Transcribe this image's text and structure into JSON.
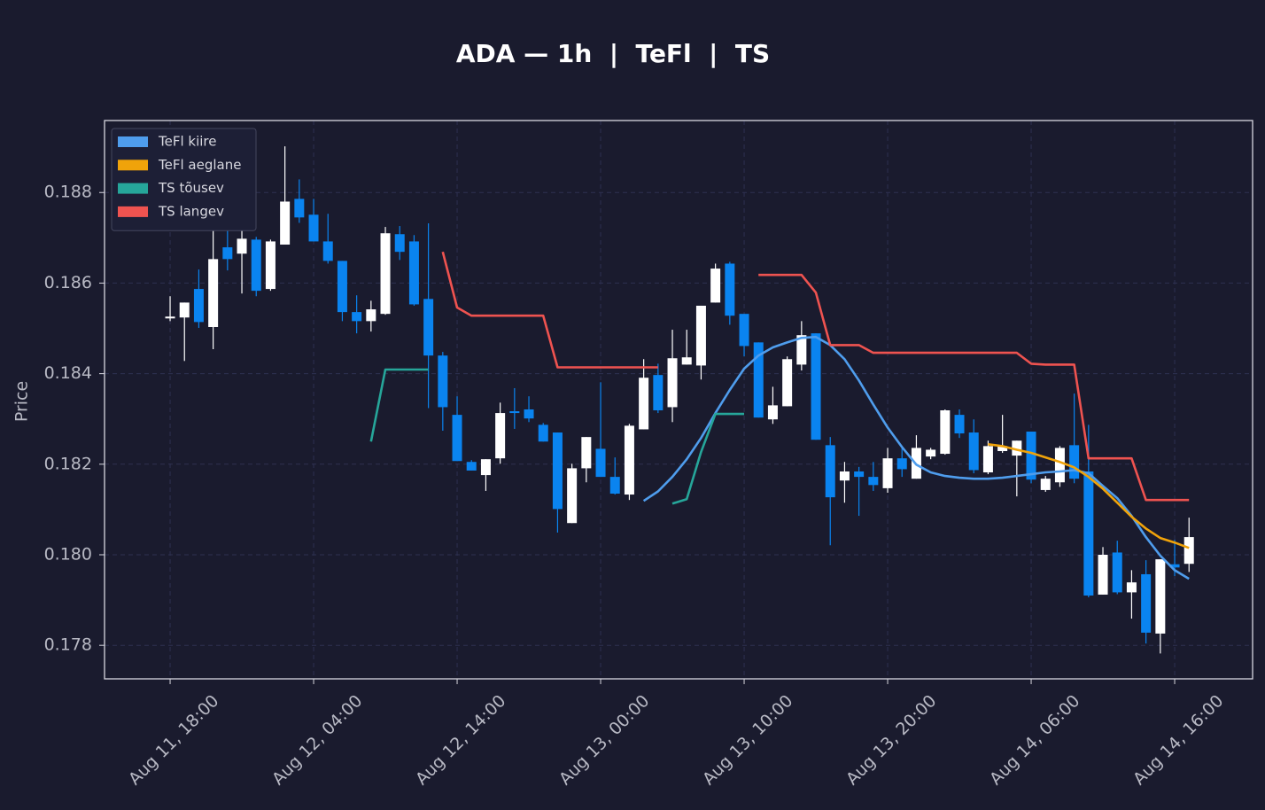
{
  "chart_data": {
    "type": "candlestick",
    "title": "ADA — 1h  |  TeFl  |  TS",
    "ylabel": "Price",
    "categories": [
      "Aug 11, 18:00",
      null,
      null,
      null,
      null,
      null,
      null,
      null,
      null,
      null,
      "Aug 12, 04:00",
      null,
      null,
      null,
      null,
      null,
      null,
      null,
      null,
      null,
      "Aug 12, 14:00",
      null,
      null,
      null,
      null,
      null,
      null,
      null,
      null,
      null,
      "Aug 13, 00:00",
      null,
      null,
      null,
      null,
      null,
      null,
      null,
      null,
      null,
      "Aug 13, 10:00",
      null,
      null,
      null,
      null,
      null,
      null,
      null,
      null,
      null,
      "Aug 13, 20:00",
      null,
      null,
      null,
      null,
      null,
      null,
      null,
      null,
      null,
      "Aug 14, 06:00",
      null,
      null,
      null,
      null,
      null,
      null,
      null,
      null,
      null,
      "Aug 14, 16:00",
      null
    ],
    "open": [
      0.18522,
      0.18524,
      0.18587,
      0.18503,
      0.18679,
      0.18665,
      0.18696,
      0.18587,
      0.18685,
      0.18786,
      0.18751,
      0.18692,
      0.18649,
      0.18536,
      0.18516,
      0.18532,
      0.18708,
      0.18692,
      0.18565,
      0.1844,
      0.18309,
      0.18205,
      0.18176,
      0.18213,
      0.18317,
      0.18321,
      0.18287,
      0.1827,
      0.1807,
      0.18191,
      0.18234,
      0.18172,
      0.18133,
      0.18277,
      0.18397,
      0.18326,
      0.1842,
      0.18418,
      0.18557,
      0.18643,
      0.18532,
      0.18469,
      0.18299,
      0.18328,
      0.1842,
      0.18489,
      0.18242,
      0.18164,
      0.18184,
      0.18172,
      0.18147,
      0.18213,
      0.18168,
      0.18217,
      0.18223,
      0.18309,
      0.1827,
      0.18182,
      0.18229,
      0.18219,
      0.18272,
      0.18143,
      0.1816,
      0.18242,
      0.18184,
      0.17912,
      0.18005,
      0.17917,
      0.17957,
      0.17826,
      0.17979,
      0.1798
    ],
    "high": [
      0.18571,
      0.18557,
      0.1863,
      0.18745,
      0.1872,
      0.18724,
      0.18702,
      0.18696,
      0.18902,
      0.18829,
      0.18786,
      0.18753,
      0.18649,
      0.18573,
      0.18561,
      0.18724,
      0.18726,
      0.18706,
      0.18732,
      0.18448,
      0.1835,
      0.18209,
      0.18211,
      0.18336,
      0.18368,
      0.1835,
      0.18291,
      0.1827,
      0.18201,
      0.1826,
      0.18381,
      0.18215,
      0.18289,
      0.18432,
      0.18422,
      0.18497,
      0.18497,
      0.1855,
      0.18643,
      0.18647,
      0.18532,
      0.18469,
      0.18371,
      0.18438,
      0.18516,
      0.18489,
      0.1826,
      0.18205,
      0.18194,
      0.18205,
      0.18236,
      0.18236,
      0.18264,
      0.18236,
      0.18321,
      0.18321,
      0.18299,
      0.18252,
      0.18309,
      0.18252,
      0.18272,
      0.18174,
      0.1824,
      0.18356,
      0.18287,
      0.18017,
      0.18031,
      0.17966,
      0.17988,
      0.1799,
      0.18033,
      0.18082
    ],
    "low": [
      0.18516,
      0.18428,
      0.18501,
      0.18454,
      0.18628,
      0.18577,
      0.18571,
      0.18583,
      0.18685,
      0.18733,
      0.18692,
      0.18643,
      0.18516,
      0.18489,
      0.18493,
      0.1853,
      0.18651,
      0.1855,
      0.18324,
      0.18274,
      0.18207,
      0.18186,
      0.18141,
      0.18201,
      0.18278,
      0.18293,
      0.1825,
      0.18049,
      0.1807,
      0.1816,
      0.18172,
      0.18133,
      0.18121,
      0.18277,
      0.18313,
      0.18293,
      0.1842,
      0.18387,
      0.18557,
      0.18508,
      0.18438,
      0.18303,
      0.18289,
      0.18328,
      0.18407,
      0.18254,
      0.18021,
      0.18115,
      0.18086,
      0.18141,
      0.18137,
      0.18172,
      0.18168,
      0.18211,
      0.18221,
      0.18258,
      0.1818,
      0.18178,
      0.18225,
      0.18129,
      0.18158,
      0.18139,
      0.1815,
      0.18158,
      0.17906,
      0.17912,
      0.17913,
      0.17859,
      0.17804,
      0.17782,
      0.17953,
      0.17962
    ],
    "close": [
      0.18526,
      0.18557,
      0.18514,
      0.18653,
      0.18653,
      0.18698,
      0.18583,
      0.18692,
      0.1878,
      0.18745,
      0.18692,
      0.18649,
      0.18536,
      0.18516,
      0.18542,
      0.1871,
      0.18669,
      0.18553,
      0.1844,
      0.18326,
      0.18207,
      0.18186,
      0.18211,
      0.18313,
      0.18313,
      0.18301,
      0.1825,
      0.18101,
      0.18191,
      0.1826,
      0.18172,
      0.18135,
      0.18285,
      0.18391,
      0.18319,
      0.18434,
      0.18436,
      0.1855,
      0.18632,
      0.18528,
      0.18461,
      0.18303,
      0.1833,
      0.18432,
      0.18485,
      0.18254,
      0.18127,
      0.18184,
      0.18172,
      0.18154,
      0.18213,
      0.18189,
      0.18236,
      0.18232,
      0.18319,
      0.18268,
      0.18187,
      0.1824,
      0.1824,
      0.18252,
      0.18166,
      0.18168,
      0.18236,
      0.18168,
      0.1791,
      0.18,
      0.17917,
      0.17939,
      0.17828,
      0.1799,
      0.17972,
      0.18039
    ],
    "up_color": "#ffffff",
    "down_color": "#0a84f0",
    "series": [
      {
        "name": "TeFl kiire",
        "color": "#4f9ded",
        "values": [
          null,
          null,
          null,
          null,
          null,
          null,
          null,
          null,
          null,
          null,
          null,
          null,
          null,
          null,
          null,
          null,
          null,
          null,
          null,
          null,
          null,
          null,
          null,
          null,
          null,
          null,
          null,
          null,
          null,
          null,
          null,
          null,
          null,
          0.18119,
          0.1814,
          0.18172,
          0.18211,
          0.18258,
          0.18313,
          0.18364,
          0.18411,
          0.1844,
          0.18458,
          0.18469,
          0.18479,
          0.18481,
          0.18463,
          0.18432,
          0.18385,
          0.18332,
          0.18281,
          0.18238,
          0.18199,
          0.18182,
          0.18174,
          0.1817,
          0.18168,
          0.18168,
          0.1817,
          0.18174,
          0.18178,
          0.18182,
          0.18184,
          0.18187,
          0.1818,
          0.18152,
          0.18125,
          0.18086,
          0.18039,
          0.17998,
          0.17966,
          0.17947
        ]
      },
      {
        "name": "TeFl aeglane",
        "color": "#f0a30a",
        "values": [
          null,
          null,
          null,
          null,
          null,
          null,
          null,
          null,
          null,
          null,
          null,
          null,
          null,
          null,
          null,
          null,
          null,
          null,
          null,
          null,
          null,
          null,
          null,
          null,
          null,
          null,
          null,
          null,
          null,
          null,
          null,
          null,
          null,
          null,
          null,
          null,
          null,
          null,
          null,
          null,
          null,
          null,
          null,
          null,
          null,
          null,
          null,
          null,
          null,
          null,
          null,
          null,
          null,
          null,
          null,
          null,
          null,
          0.18244,
          0.1824,
          0.18232,
          0.18225,
          0.18215,
          0.18205,
          0.18193,
          0.18172,
          0.18146,
          0.18115,
          0.18084,
          0.18058,
          0.18037,
          0.18027,
          0.18015
        ]
      },
      {
        "name": "TS tõusev",
        "color": "#26a69a",
        "values": [
          null,
          null,
          null,
          null,
          null,
          null,
          null,
          null,
          null,
          null,
          null,
          null,
          null,
          null,
          0.1825,
          0.18409,
          0.18409,
          0.18409,
          0.18409,
          null,
          null,
          null,
          null,
          null,
          null,
          null,
          null,
          null,
          null,
          null,
          null,
          null,
          null,
          null,
          null,
          0.18113,
          0.18123,
          0.18227,
          0.18311,
          0.18311,
          0.18311,
          null,
          null,
          null,
          null,
          null,
          null,
          null,
          null,
          null,
          null,
          null,
          null,
          null,
          null,
          null,
          null,
          null,
          null,
          null,
          null,
          null,
          null,
          null,
          null,
          null,
          null,
          null,
          null,
          null,
          null,
          null
        ]
      },
      {
        "name": "TS langev",
        "color": "#ef5350",
        "values": [
          null,
          null,
          null,
          null,
          null,
          null,
          null,
          null,
          null,
          null,
          null,
          null,
          null,
          null,
          null,
          null,
          null,
          null,
          null,
          0.18669,
          0.18546,
          0.18528,
          0.18528,
          0.18528,
          0.18528,
          0.18528,
          0.18528,
          0.18414,
          0.18414,
          0.18414,
          0.18414,
          0.18414,
          0.18414,
          0.18414,
          0.18414,
          null,
          null,
          null,
          null,
          null,
          null,
          0.18618,
          0.18618,
          0.18618,
          0.18618,
          0.18579,
          0.18463,
          0.18463,
          0.18463,
          0.18446,
          0.18446,
          0.18446,
          0.18446,
          0.18446,
          0.18446,
          0.18446,
          0.18446,
          0.18446,
          0.18446,
          0.18446,
          0.18422,
          0.1842,
          0.1842,
          0.1842,
          0.18213,
          0.18213,
          0.18213,
          0.18213,
          0.18121,
          0.18121,
          0.18121,
          0.18121
        ]
      }
    ],
    "ylim": [
      0.17726,
      0.18959
    ],
    "yticks": [
      0.178,
      {
        "value": 0.18,
        "label": "0.180"
      },
      0.182,
      0.184,
      0.186,
      0.188
    ],
    "grid": true,
    "legend": "upper left"
  }
}
